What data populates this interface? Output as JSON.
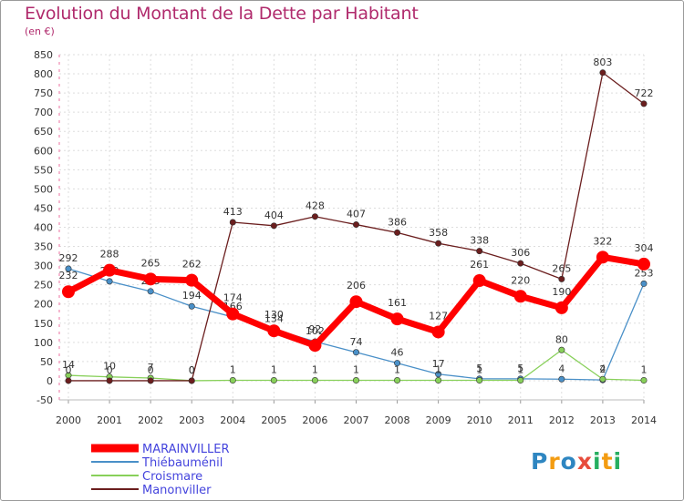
{
  "title": "Evolution du Montant de la Dette par Habitant",
  "subtitle": "(en €)",
  "brand": "Proxiti",
  "chart_data": {
    "type": "line",
    "x": [
      "2000",
      "2001",
      "2002",
      "2003",
      "2004",
      "2005",
      "2006",
      "2007",
      "2008",
      "2009",
      "2010",
      "2011",
      "2012",
      "2013",
      "2014"
    ],
    "ylim": [
      -50,
      850
    ],
    "yticks": [
      -50,
      0,
      50,
      100,
      150,
      200,
      250,
      300,
      350,
      400,
      450,
      500,
      550,
      600,
      650,
      700,
      750,
      800,
      850
    ],
    "grid": true,
    "legend_placement": "bottom-left",
    "series": [
      {
        "name": "MARAINVILLER",
        "color": "#ff0000",
        "values": [
          232,
          288,
          265,
          262,
          174,
          130,
          92,
          206,
          161,
          127,
          261,
          220,
          190,
          322,
          304
        ]
      },
      {
        "name": "Thiébauménil",
        "color": "#4a90c8",
        "values": [
          292,
          259,
          233,
          194,
          166,
          134,
          102,
          74,
          46,
          17,
          5,
          5,
          4,
          2,
          253
        ]
      },
      {
        "name": "Croismare",
        "color": "#88d05a",
        "values": [
          14,
          10,
          7,
          0,
          1,
          1,
          1,
          1,
          1,
          1,
          1,
          1,
          80,
          4,
          1
        ]
      },
      {
        "name": "Manonviller",
        "color": "#6b1e1e",
        "values": [
          0,
          0,
          0,
          0,
          413,
          404,
          428,
          407,
          386,
          358,
          338,
          306,
          265,
          803,
          722
        ]
      }
    ]
  }
}
